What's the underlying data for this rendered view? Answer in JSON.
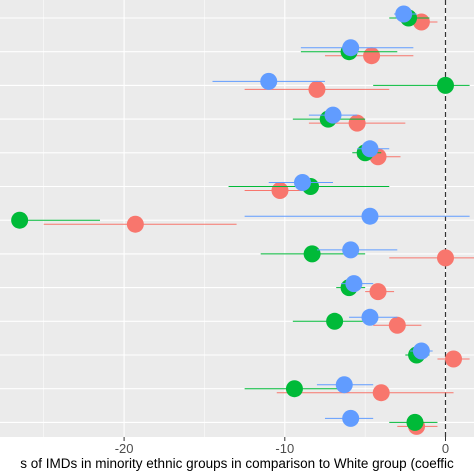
{
  "chart_data": {
    "type": "scatter",
    "subtype": "dot-whisker",
    "xlabel": "s of IMDs in minority ethnic groups in comparison to White group (coeffic",
    "xlim": [
      -27,
      1.5
    ],
    "x_ticks": [
      -20,
      -10,
      0
    ],
    "x_tick_labels": [
      "-20",
      "-10",
      "0"
    ],
    "reference_line": {
      "x": 0,
      "style": "dashed"
    },
    "grid": true,
    "background": "#ebebeb",
    "legend": "none",
    "n_rows": 13,
    "series": [
      {
        "color": "#f8766d",
        "points": [
          {
            "row": 1,
            "x": -1.5,
            "lo": -2.5,
            "hi": -0.5
          },
          {
            "row": 2,
            "x": -4.6,
            "lo": -7.5,
            "hi": -2.0
          },
          {
            "row": 3,
            "x": -8.0,
            "lo": -12.5,
            "hi": -3.5
          },
          {
            "row": 4,
            "x": -5.5,
            "lo": -8.5,
            "hi": -2.5
          },
          {
            "row": 5,
            "x": -4.2,
            "lo": -5.5,
            "hi": -2.8
          },
          {
            "row": 6,
            "x": -10.3,
            "lo": -12.5,
            "hi": -8.0
          },
          {
            "row": 7,
            "x": -19.3,
            "lo": -25.0,
            "hi": -13.0
          },
          {
            "row": 8,
            "x": 0.0,
            "lo": -3.5,
            "hi": 3.5
          },
          {
            "row": 9,
            "x": -4.2,
            "lo": -5.0,
            "hi": -3.2
          },
          {
            "row": 10,
            "x": -3.0,
            "lo": -4.5,
            "hi": -1.5
          },
          {
            "row": 11,
            "x": 0.5,
            "lo": -0.5,
            "hi": 1.5
          },
          {
            "row": 12,
            "x": -4.0,
            "lo": -10.5,
            "hi": 0.5
          },
          {
            "row": 13,
            "x": -1.8,
            "lo": -3.0,
            "hi": -0.5
          }
        ]
      },
      {
        "color": "#00ba38",
        "points": [
          {
            "row": 1,
            "x": -2.3,
            "lo": -3.5,
            "hi": -1.0
          },
          {
            "row": 2,
            "x": -6.0,
            "lo": -9.0,
            "hi": -3.0
          },
          {
            "row": 3,
            "x": 0.0,
            "lo": -4.5,
            "hi": 1.5
          },
          {
            "row": 4,
            "x": -7.3,
            "lo": -9.5,
            "hi": -5.0
          },
          {
            "row": 5,
            "x": -5.0,
            "lo": -5.8,
            "hi": -4.0
          },
          {
            "row": 6,
            "x": -8.4,
            "lo": -13.5,
            "hi": -3.5
          },
          {
            "row": 7,
            "x": -26.5,
            "lo": -27.0,
            "hi": -21.5
          },
          {
            "row": 8,
            "x": -8.3,
            "lo": -11.5,
            "hi": -5.0
          },
          {
            "row": 9,
            "x": -6.0,
            "lo": -6.8,
            "hi": -5.0
          },
          {
            "row": 10,
            "x": -6.9,
            "lo": -9.5,
            "hi": -4.5
          },
          {
            "row": 11,
            "x": -1.8,
            "lo": -2.5,
            "hi": -1.0
          },
          {
            "row": 12,
            "x": -9.4,
            "lo": -12.5,
            "hi": -6.5
          },
          {
            "row": 13,
            "x": -1.9,
            "lo": -3.5,
            "hi": -0.5
          }
        ]
      },
      {
        "color": "#619cff",
        "points": [
          {
            "row": 1,
            "x": -2.6,
            "lo": -3.2,
            "hi": -1.8
          },
          {
            "row": 2,
            "x": -5.9,
            "lo": -9.0,
            "hi": -2.0
          },
          {
            "row": 3,
            "x": -11.0,
            "lo": -14.5,
            "hi": -7.5
          },
          {
            "row": 4,
            "x": -7.0,
            "lo": -8.5,
            "hi": -5.5
          },
          {
            "row": 5,
            "x": -4.7,
            "lo": -5.5,
            "hi": -3.5
          },
          {
            "row": 6,
            "x": -8.9,
            "lo": -11.0,
            "hi": -7.0
          },
          {
            "row": 7,
            "x": -4.7,
            "lo": -12.5,
            "hi": 1.5
          },
          {
            "row": 8,
            "x": -5.9,
            "lo": -8.0,
            "hi": -3.0
          },
          {
            "row": 9,
            "x": -5.7,
            "lo": -6.5,
            "hi": -4.5
          },
          {
            "row": 10,
            "x": -4.7,
            "lo": -6.0,
            "hi": -3.0
          },
          {
            "row": 11,
            "x": -1.5,
            "lo": -2.2,
            "hi": -0.8
          },
          {
            "row": 12,
            "x": -6.3,
            "lo": -8.0,
            "hi": -4.5
          },
          {
            "row": 13,
            "x": -5.9,
            "lo": -7.5,
            "hi": -4.5
          }
        ]
      }
    ]
  }
}
